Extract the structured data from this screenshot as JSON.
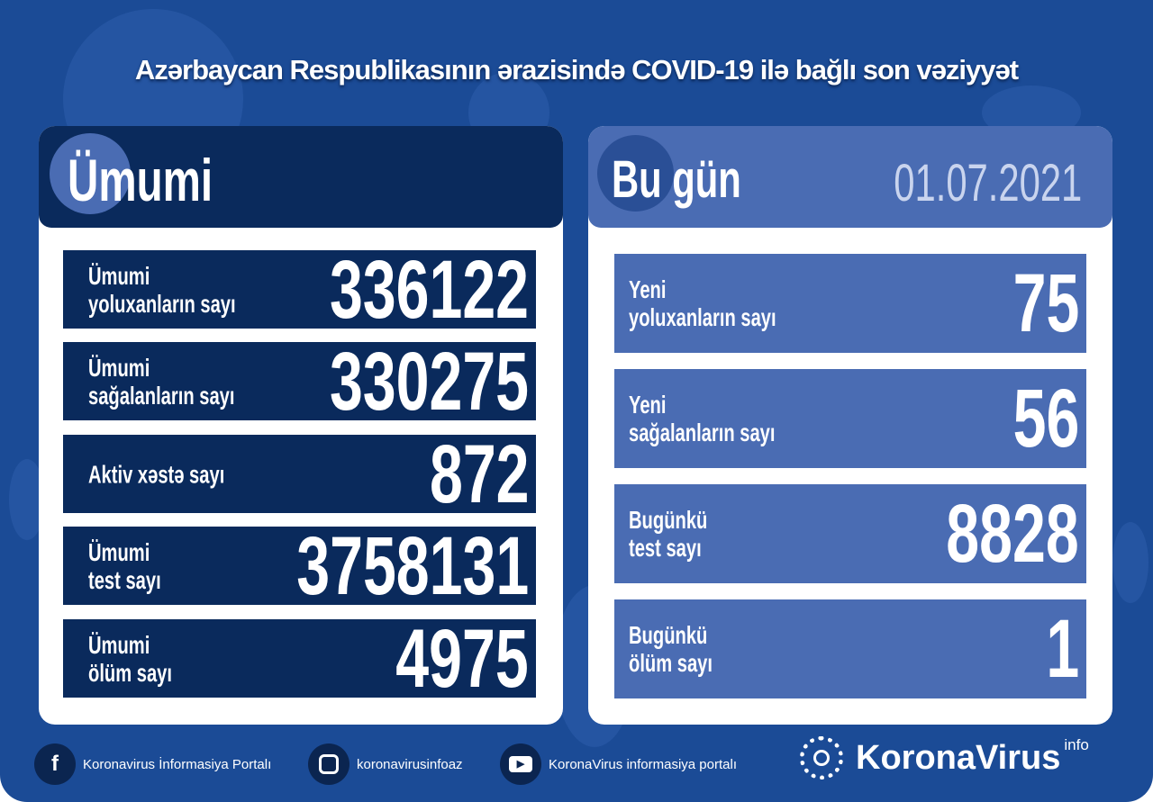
{
  "title": "Azərbaycan Respublikasının ərazisində COVID-19 ilə bağlı son vəziyyət",
  "colors": {
    "background": "#1b4b96",
    "left_dark": "#0a2a5c",
    "right_card": "#4a6cb3",
    "white": "#ffffff"
  },
  "total": {
    "heading": "Ümumi",
    "rows": [
      {
        "label_1": "Ümumi",
        "label_2": "yoluxanların sayı",
        "value": "336122"
      },
      {
        "label_1": "Ümumi",
        "label_2": "sağalanların sayı",
        "value": "330275"
      },
      {
        "label_1": "Aktiv xəstə sayı",
        "label_2": "",
        "value": "872"
      },
      {
        "label_1": "Ümumi",
        "label_2": "test sayı",
        "value": "3758131"
      },
      {
        "label_1": "Ümumi",
        "label_2": "ölüm sayı",
        "value": "4975"
      }
    ]
  },
  "today": {
    "heading": "Bu gün",
    "date": "01.07.2021",
    "rows": [
      {
        "label_1": "Yeni",
        "label_2": "yoluxanların sayı",
        "value": "75"
      },
      {
        "label_1": "Yeni",
        "label_2": "sağalanların sayı",
        "value": "56"
      },
      {
        "label_1": "Bugünkü",
        "label_2": "test sayı",
        "value": "8828"
      },
      {
        "label_1": "Bugünkü",
        "label_2": "ölüm sayı",
        "value": "1"
      }
    ]
  },
  "footer": {
    "facebook": "Koronavirus İnformasiya Portalı",
    "instagram": "koronavirusinfoaz",
    "youtube": "KoronaVirus informasiya portalı",
    "logo": "KoronaVirus",
    "logo_sup": "info"
  },
  "icons": {
    "facebook": "facebook-icon",
    "instagram": "instagram-icon",
    "youtube": "youtube-icon",
    "logo": "sun-virus-icon"
  }
}
